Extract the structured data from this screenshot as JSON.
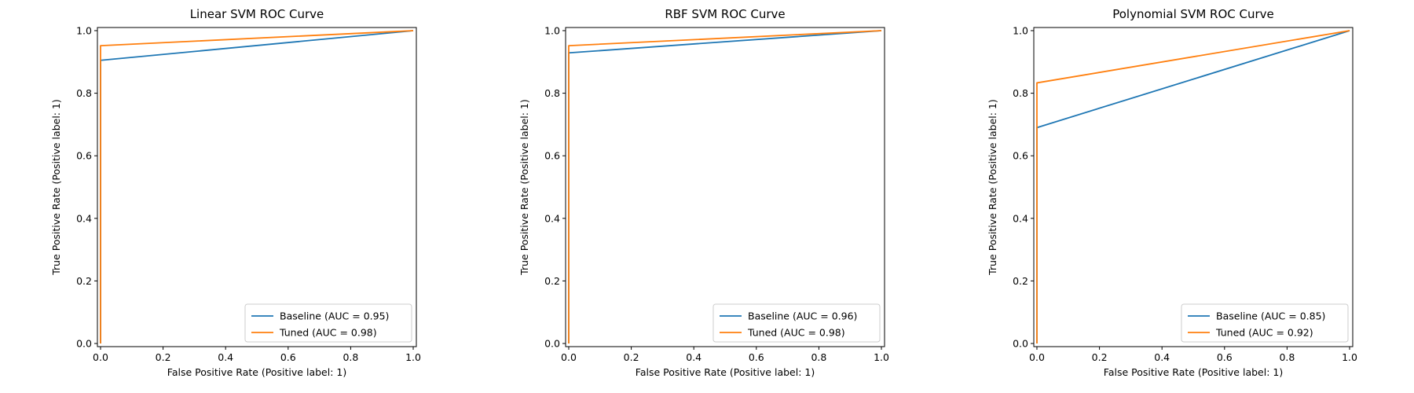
{
  "figure": {
    "colors": {
      "baseline": "#1f77b4",
      "tuned": "#ff7f0e"
    }
  },
  "chart_data": [
    {
      "type": "line",
      "title": "Linear SVM ROC Curve",
      "xlabel": "False Positive Rate (Positive label: 1)",
      "ylabel": "True Positive Rate (Positive label: 1)",
      "xlim": [
        0,
        1
      ],
      "ylim": [
        0,
        1
      ],
      "xticks": [
        "0.0",
        "0.2",
        "0.4",
        "0.6",
        "0.8",
        "1.0"
      ],
      "yticks": [
        "0.0",
        "0.2",
        "0.4",
        "0.6",
        "0.8",
        "1.0"
      ],
      "legend_position": "lower-right",
      "series": [
        {
          "name": "Baseline (AUC = 0.95)",
          "color_key": "baseline",
          "x": [
            0.0,
            0.0,
            1.0
          ],
          "y": [
            0.0,
            0.905,
            1.0
          ]
        },
        {
          "name": "Tuned (AUC = 0.98)",
          "color_key": "tuned",
          "x": [
            0.0,
            0.0,
            1.0
          ],
          "y": [
            0.0,
            0.952,
            1.0
          ]
        }
      ]
    },
    {
      "type": "line",
      "title": "RBF SVM ROC Curve",
      "xlabel": "False Positive Rate (Positive label: 1)",
      "ylabel": "True Positive Rate (Positive label: 1)",
      "xlim": [
        0,
        1
      ],
      "ylim": [
        0,
        1
      ],
      "xticks": [
        "0.0",
        "0.2",
        "0.4",
        "0.6",
        "0.8",
        "1.0"
      ],
      "yticks": [
        "0.0",
        "0.2",
        "0.4",
        "0.6",
        "0.8",
        "1.0"
      ],
      "legend_position": "lower-right",
      "series": [
        {
          "name": "Baseline (AUC = 0.96)",
          "color_key": "baseline",
          "x": [
            0.0,
            0.0,
            1.0
          ],
          "y": [
            0.0,
            0.929,
            1.0
          ]
        },
        {
          "name": "Tuned (AUC = 0.98)",
          "color_key": "tuned",
          "x": [
            0.0,
            0.0,
            1.0
          ],
          "y": [
            0.0,
            0.952,
            1.0
          ]
        }
      ]
    },
    {
      "type": "line",
      "title": "Polynomial SVM ROC Curve",
      "xlabel": "False Positive Rate (Positive label: 1)",
      "ylabel": "True Positive Rate (Positive label: 1)",
      "xlim": [
        0,
        1
      ],
      "ylim": [
        0,
        1
      ],
      "xticks": [
        "0.0",
        "0.2",
        "0.4",
        "0.6",
        "0.8",
        "1.0"
      ],
      "yticks": [
        "0.0",
        "0.2",
        "0.4",
        "0.6",
        "0.8",
        "1.0"
      ],
      "legend_position": "lower-right",
      "series": [
        {
          "name": "Baseline (AUC = 0.85)",
          "color_key": "baseline",
          "x": [
            0.0,
            0.0,
            1.0
          ],
          "y": [
            0.0,
            0.69,
            1.0
          ]
        },
        {
          "name": "Tuned (AUC = 0.92)",
          "color_key": "tuned",
          "x": [
            0.0,
            0.0,
            1.0
          ],
          "y": [
            0.0,
            0.833,
            1.0
          ]
        }
      ]
    }
  ]
}
